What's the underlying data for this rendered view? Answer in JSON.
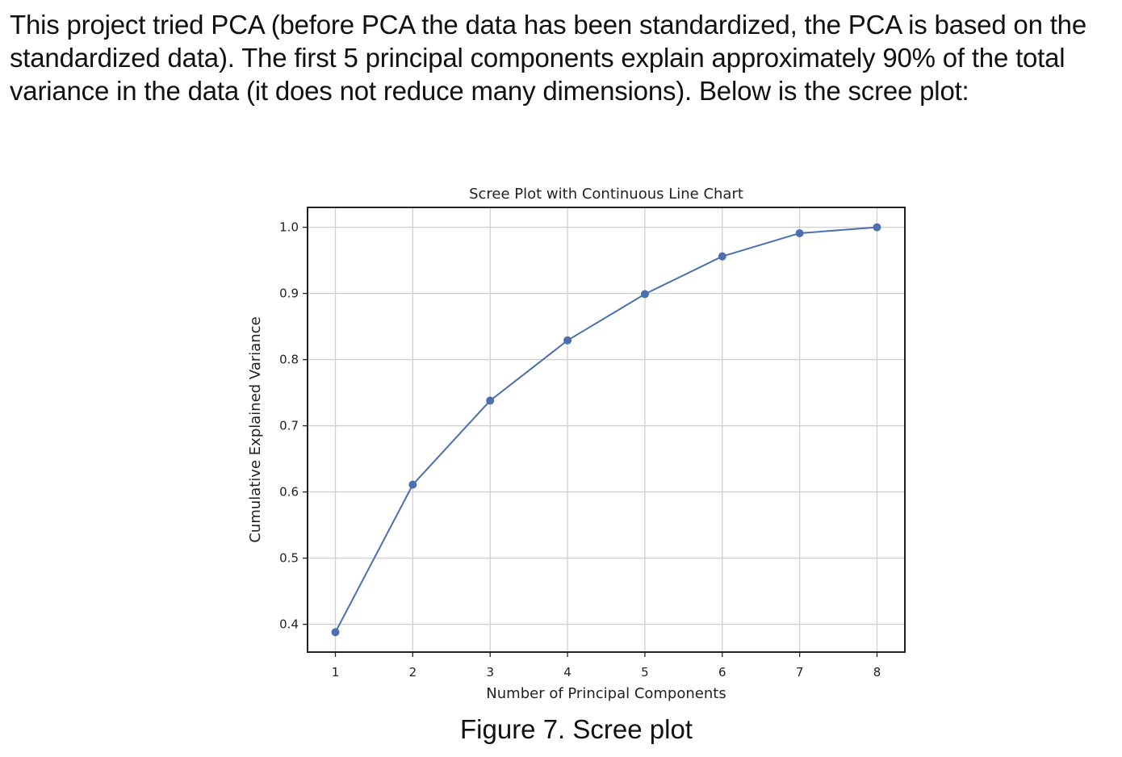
{
  "document": {
    "intro_text": "This project tried PCA (before PCA the data has been standardized, the PCA is based on the standardized data). The first 5 principal components explain approximately 90% of the total variance in the data (it does not reduce many dimensions). Below is the scree plot:",
    "caption": "Figure 7. Scree plot"
  },
  "colors": {
    "series": "#4c6fb0",
    "grid": "#d0d0d0",
    "frame": "#222222"
  },
  "chart_data": {
    "type": "line",
    "title": "Scree Plot with Continuous Line Chart",
    "xlabel": "Number of Principal Components",
    "ylabel": "Cumulative Explained Variance",
    "x": [
      1,
      2,
      3,
      4,
      5,
      6,
      7,
      8
    ],
    "series": [
      {
        "values": [
          0.388,
          0.611,
          0.738,
          0.829,
          0.899,
          0.956,
          0.991,
          1.0
        ]
      }
    ],
    "xticks": [
      "1",
      "2",
      "3",
      "4",
      "5",
      "6",
      "7",
      "8"
    ],
    "yticks": [
      "0.4",
      "0.5",
      "0.6",
      "0.7",
      "0.8",
      "0.9",
      "1.0"
    ],
    "xlim": [
      0.64,
      8.36
    ],
    "ylim": [
      0.358,
      1.03
    ],
    "grid": true,
    "markers": true
  }
}
